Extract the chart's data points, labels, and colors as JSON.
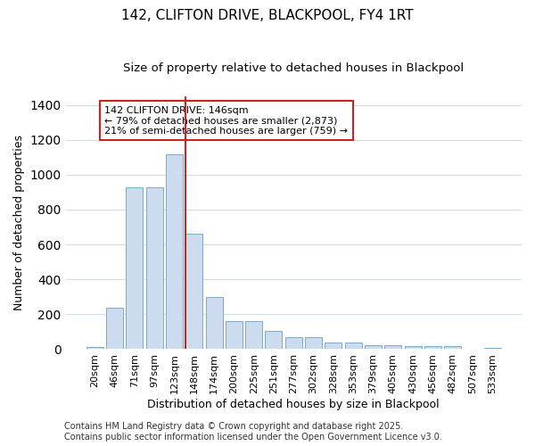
{
  "title": "142, CLIFTON DRIVE, BLACKPOOL, FY4 1RT",
  "subtitle": "Size of property relative to detached houses in Blackpool",
  "xlabel": "Distribution of detached houses by size in Blackpool",
  "ylabel": "Number of detached properties",
  "categories": [
    "20sqm",
    "46sqm",
    "71sqm",
    "97sqm",
    "123sqm",
    "148sqm",
    "174sqm",
    "200sqm",
    "225sqm",
    "251sqm",
    "277sqm",
    "302sqm",
    "328sqm",
    "353sqm",
    "379sqm",
    "405sqm",
    "430sqm",
    "456sqm",
    "482sqm",
    "507sqm",
    "533sqm"
  ],
  "values": [
    15,
    235,
    930,
    930,
    1115,
    660,
    300,
    160,
    160,
    105,
    70,
    70,
    40,
    40,
    25,
    25,
    20,
    20,
    20,
    0,
    10
  ],
  "bar_color": "#ccdcee",
  "bar_edge_color": "#7aaac8",
  "vline_color": "#cc2222",
  "annotation_text": "142 CLIFTON DRIVE: 146sqm\n← 79% of detached houses are smaller (2,873)\n21% of semi-detached houses are larger (759) →",
  "annotation_box_color": "#cc2222",
  "annotation_bg": "white",
  "footer": "Contains HM Land Registry data © Crown copyright and database right 2025.\nContains public sector information licensed under the Open Government Licence v3.0.",
  "ylim": [
    0,
    1450
  ],
  "bg_color": "#ffffff",
  "grid_color": "#d0dce8",
  "title_fontsize": 11,
  "subtitle_fontsize": 9.5,
  "axis_label_fontsize": 9,
  "tick_fontsize": 8,
  "footer_fontsize": 7
}
